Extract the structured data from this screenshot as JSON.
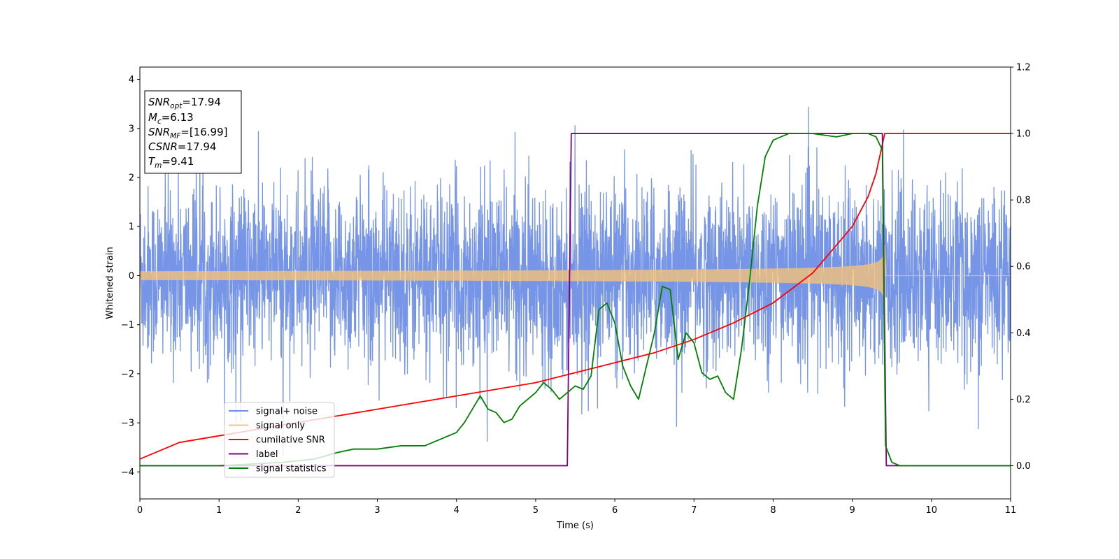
{
  "chart_data": {
    "type": "line",
    "xlabel": "Time (s)",
    "ylabel": "Whitened strain",
    "xlim": [
      0,
      11
    ],
    "ylim_left": [
      -4.55,
      4.25
    ],
    "ylim_right": [
      -0.1,
      1.2
    ],
    "x_ticks": [
      0,
      1,
      2,
      3,
      4,
      5,
      6,
      7,
      8,
      9,
      10,
      11
    ],
    "y_ticks_left": [
      -4,
      -3,
      -2,
      -1,
      0,
      1,
      2,
      3,
      4
    ],
    "y_ticks_right": [
      0.0,
      0.2,
      0.4,
      0.6,
      0.8,
      1.0,
      1.2
    ],
    "grid": false,
    "legend_position": "lower-left",
    "annotation": {
      "lines": [
        {
          "main": "SNR",
          "sub": "opt",
          "rest": "=17.94"
        },
        {
          "main": "M",
          "sub": "c",
          "rest": "=6.13"
        },
        {
          "main": "SNR",
          "sub": "MF",
          "rest": "=[16.99]"
        },
        {
          "main": "CSNR",
          "sub": "",
          "rest": "=17.94"
        },
        {
          "main": "T",
          "sub": "m",
          "rest": "=9.41"
        }
      ]
    },
    "series": [
      {
        "name": "signal+ noise",
        "axis": "left",
        "color": "#6f8fe6",
        "kind": "noise",
        "std": 0.9,
        "x_range": [
          0,
          11
        ]
      },
      {
        "name": "signal only",
        "axis": "left",
        "color": "#f5c27a",
        "kind": "chirp",
        "amplitude_start": 0.09,
        "amplitude_end": 0.92,
        "merger_time": 9.41
      },
      {
        "name": "cumilative SNR",
        "axis": "right",
        "x": [
          0,
          0.5,
          1,
          1.5,
          2,
          2.5,
          3,
          3.5,
          4,
          4.5,
          5,
          5.5,
          6,
          6.5,
          7,
          7.5,
          8,
          8.5,
          9,
          9.2,
          9.3,
          9.41,
          11
        ],
        "y": [
          0.02,
          0.07,
          0.09,
          0.11,
          0.13,
          0.15,
          0.17,
          0.19,
          0.21,
          0.23,
          0.25,
          0.28,
          0.31,
          0.34,
          0.38,
          0.43,
          0.49,
          0.58,
          0.72,
          0.81,
          0.88,
          1.0,
          1.0
        ],
        "color": "#ff0000"
      },
      {
        "name": "label",
        "axis": "right",
        "x": [
          0,
          5.4,
          5.45,
          9.38,
          9.43,
          11
        ],
        "y": [
          0.0,
          0.0,
          1.0,
          1.0,
          0.0,
          0.0
        ],
        "color": "#800080"
      },
      {
        "name": "signal statistics",
        "axis": "right",
        "x": [
          0,
          1,
          1.8,
          2.2,
          2.5,
          2.7,
          3,
          3.3,
          3.6,
          3.8,
          4,
          4.1,
          4.2,
          4.3,
          4.4,
          4.5,
          4.6,
          4.7,
          4.8,
          4.9,
          5,
          5.1,
          5.2,
          5.3,
          5.4,
          5.5,
          5.6,
          5.7,
          5.8,
          5.9,
          6,
          6.1,
          6.2,
          6.3,
          6.4,
          6.5,
          6.6,
          6.7,
          6.8,
          6.9,
          7,
          7.1,
          7.2,
          7.3,
          7.4,
          7.5,
          7.6,
          7.7,
          7.8,
          7.9,
          8,
          8.2,
          8.5,
          8.8,
          9,
          9.2,
          9.3,
          9.38,
          9.42,
          9.5,
          9.6,
          11
        ],
        "y": [
          0.0,
          0.0,
          0.01,
          0.02,
          0.04,
          0.05,
          0.05,
          0.06,
          0.06,
          0.08,
          0.1,
          0.13,
          0.17,
          0.21,
          0.17,
          0.16,
          0.13,
          0.14,
          0.18,
          0.2,
          0.22,
          0.25,
          0.23,
          0.2,
          0.22,
          0.24,
          0.23,
          0.27,
          0.47,
          0.49,
          0.43,
          0.3,
          0.24,
          0.2,
          0.3,
          0.4,
          0.54,
          0.53,
          0.32,
          0.4,
          0.37,
          0.28,
          0.26,
          0.27,
          0.22,
          0.2,
          0.35,
          0.55,
          0.78,
          0.93,
          0.98,
          1.0,
          1.0,
          0.99,
          1.0,
          1.0,
          0.99,
          0.95,
          0.06,
          0.01,
          0.0,
          0.0
        ],
        "color": "#008000"
      }
    ]
  }
}
